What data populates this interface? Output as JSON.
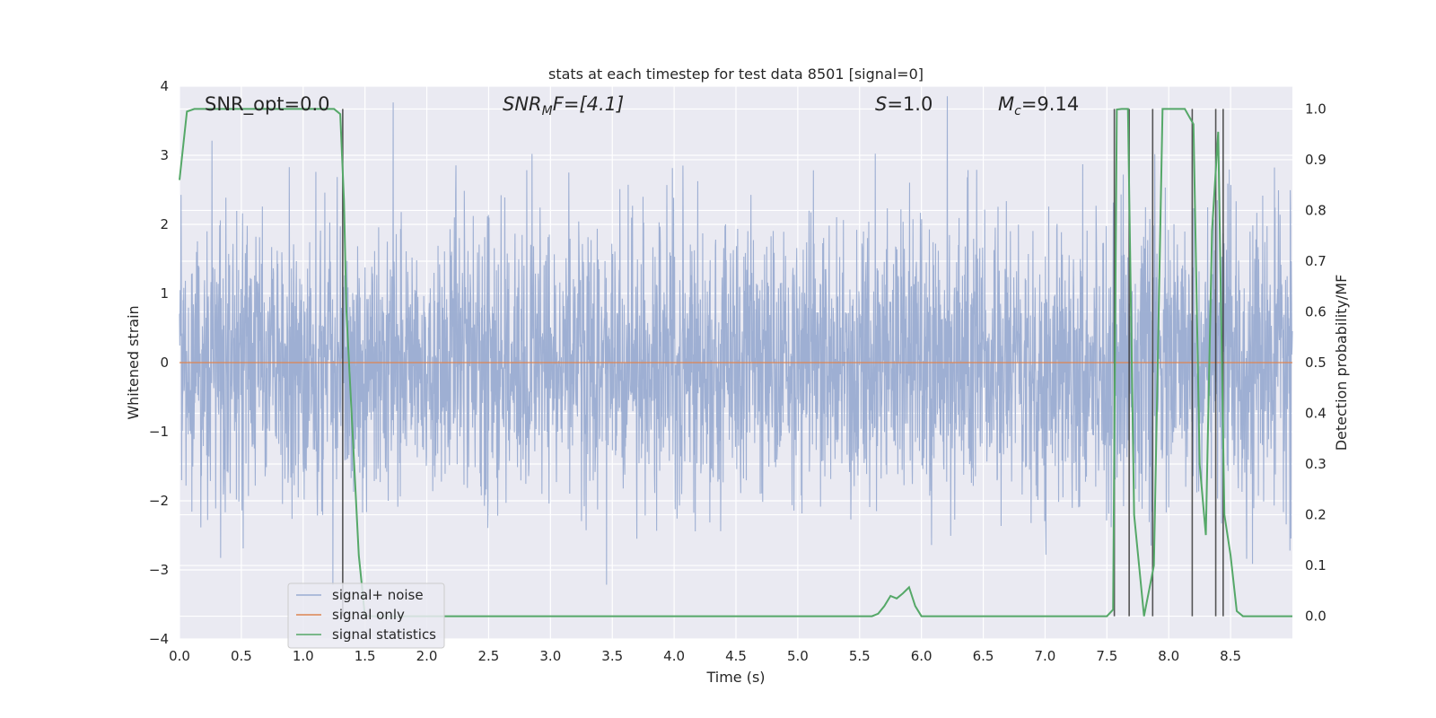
{
  "chart_data": {
    "type": "line",
    "title": "stats at each timestep for test data 8501 [signal=0]",
    "xlabel": "Time (s)",
    "ylabel": "Whitened strain",
    "y2label": "Detection probability/MF",
    "xlim": [
      0.0,
      9.0
    ],
    "ylim": [
      -4.0,
      4.0
    ],
    "y2lim": [
      -0.045,
      1.045
    ],
    "grid": true,
    "legend_position": "lower-left",
    "x_ticks": [
      "0.0",
      "0.5",
      "1.0",
      "1.5",
      "2.0",
      "2.5",
      "3.0",
      "3.5",
      "4.0",
      "4.5",
      "5.0",
      "5.5",
      "6.0",
      "6.5",
      "7.0",
      "7.5",
      "8.0",
      "8.5"
    ],
    "x_tick_values": [
      0,
      0.5,
      1,
      1.5,
      2,
      2.5,
      3,
      3.5,
      4,
      4.5,
      5,
      5.5,
      6,
      6.5,
      7,
      7.5,
      8,
      8.5
    ],
    "y_ticks": [
      "4",
      "3",
      "2",
      "1",
      "0",
      "−1",
      "−2",
      "−3",
      "−4"
    ],
    "y_tick_values": [
      4,
      3,
      2,
      1,
      0,
      -1,
      -2,
      -3,
      -4
    ],
    "y2_ticks": [
      "1.0",
      "0.9",
      "0.8",
      "0.7",
      "0.6",
      "0.5",
      "0.4",
      "0.3",
      "0.2",
      "0.1",
      "0.0"
    ],
    "y2_tick_values": [
      1.0,
      0.9,
      0.8,
      0.7,
      0.6,
      0.5,
      0.4,
      0.3,
      0.2,
      0.1,
      0.0
    ],
    "annotations": {
      "snr_opt": "SNR_opt=0.0",
      "snr_mf_main": "SNR",
      "snr_mf_sub": "M",
      "snr_mf_rest": "F=[4.1]",
      "s_italic": "S",
      "s_rest": "=1.0",
      "mc_italic": "M",
      "mc_sub": "c",
      "mc_rest": "=9.14"
    },
    "series": [
      {
        "name": "signal+ noise",
        "color": "#9aacd1",
        "kind": "noise",
        "y_range": [
          -3.7,
          4.0
        ]
      },
      {
        "name": "signal only",
        "color": "#dd8452",
        "x": [
          0.0,
          9.0
        ],
        "y": [
          0.0,
          0.0
        ]
      },
      {
        "name": "signal statistics",
        "color": "#55a868",
        "axis": "right",
        "x": [
          0.0,
          0.06,
          0.12,
          0.2,
          0.5,
          1.0,
          1.25,
          1.3,
          1.33,
          1.35,
          1.45,
          1.5,
          5.3,
          5.6,
          5.65,
          5.7,
          5.75,
          5.8,
          5.85,
          5.9,
          5.95,
          6.0,
          6.05,
          7.5,
          7.55,
          7.58,
          7.62,
          7.67,
          7.72,
          7.8,
          7.88,
          7.95,
          8.0,
          8.05,
          8.13,
          8.2,
          8.25,
          8.3,
          8.35,
          8.4,
          8.45,
          8.5,
          8.55,
          8.6,
          8.65,
          9.0
        ],
        "y": [
          0.86,
          0.995,
          1.0,
          1.0,
          1.0,
          1.0,
          1.0,
          0.99,
          0.82,
          0.6,
          0.12,
          0.0,
          0.0,
          0.0,
          0.005,
          0.02,
          0.04,
          0.035,
          0.045,
          0.057,
          0.02,
          0.0,
          0.0,
          0.0,
          0.013,
          0.999,
          1.0,
          1.0,
          0.2,
          0.0,
          0.1,
          1.0,
          1.0,
          1.0,
          1.0,
          0.97,
          0.3,
          0.16,
          0.76,
          0.955,
          0.2,
          0.12,
          0.01,
          0.0,
          0.0,
          0.0
        ]
      }
    ],
    "vertical_markers": [
      1.32,
      7.56,
      7.68,
      7.87,
      8.19,
      8.38,
      8.44
    ]
  },
  "legend": {
    "items": [
      {
        "label": "signal+ noise",
        "color": "#9aacd1"
      },
      {
        "label": "signal only",
        "color": "#dd8452"
      },
      {
        "label": "signal statistics",
        "color": "#55a868"
      }
    ]
  }
}
